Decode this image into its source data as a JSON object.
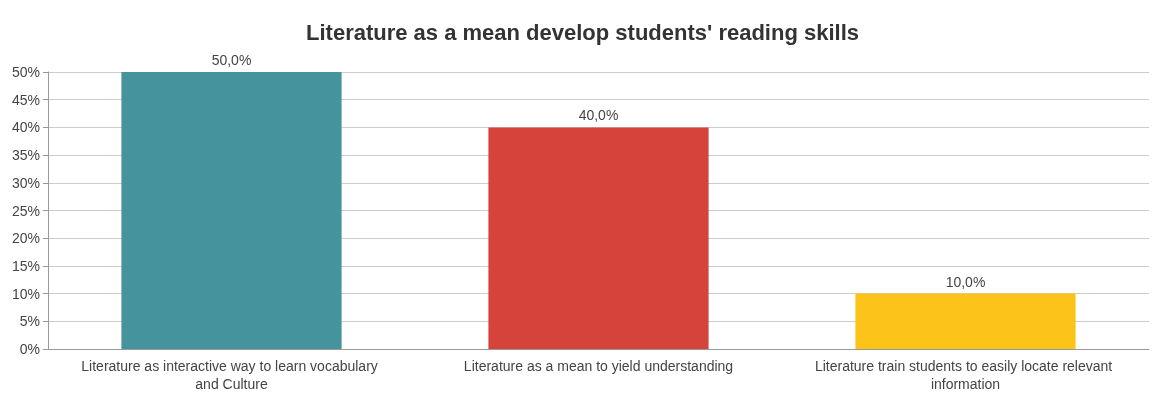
{
  "chart_data": {
    "type": "bar",
    "title": "Literature as a mean develop students' reading skills",
    "categories": [
      "Literature as interactive way to learn vocabulary and Culture",
      "Literature as a mean to yield understanding",
      "Literature train students to easily locate relevant information"
    ],
    "values": [
      50,
      40,
      10
    ],
    "colors": [
      "#45939c",
      "#d5433b",
      "#fcc419"
    ],
    "value_labels": [
      "50,0%",
      "40,0%",
      "10,0%"
    ],
    "ylim": [
      0,
      50
    ],
    "yticks": [
      {
        "value": 0,
        "label": "0%"
      },
      {
        "value": 5,
        "label": "5%"
      },
      {
        "value": 10,
        "label": "10%"
      },
      {
        "value": 15,
        "label": "15%"
      },
      {
        "value": 20,
        "label": "20%"
      },
      {
        "value": 25,
        "label": "25%"
      },
      {
        "value": 30,
        "label": "30%"
      },
      {
        "value": 35,
        "label": "35%"
      },
      {
        "value": 40,
        "label": "40%"
      },
      {
        "value": 45,
        "label": "45%"
      },
      {
        "value": 50,
        "label": "50%"
      }
    ],
    "grid": "y"
  }
}
